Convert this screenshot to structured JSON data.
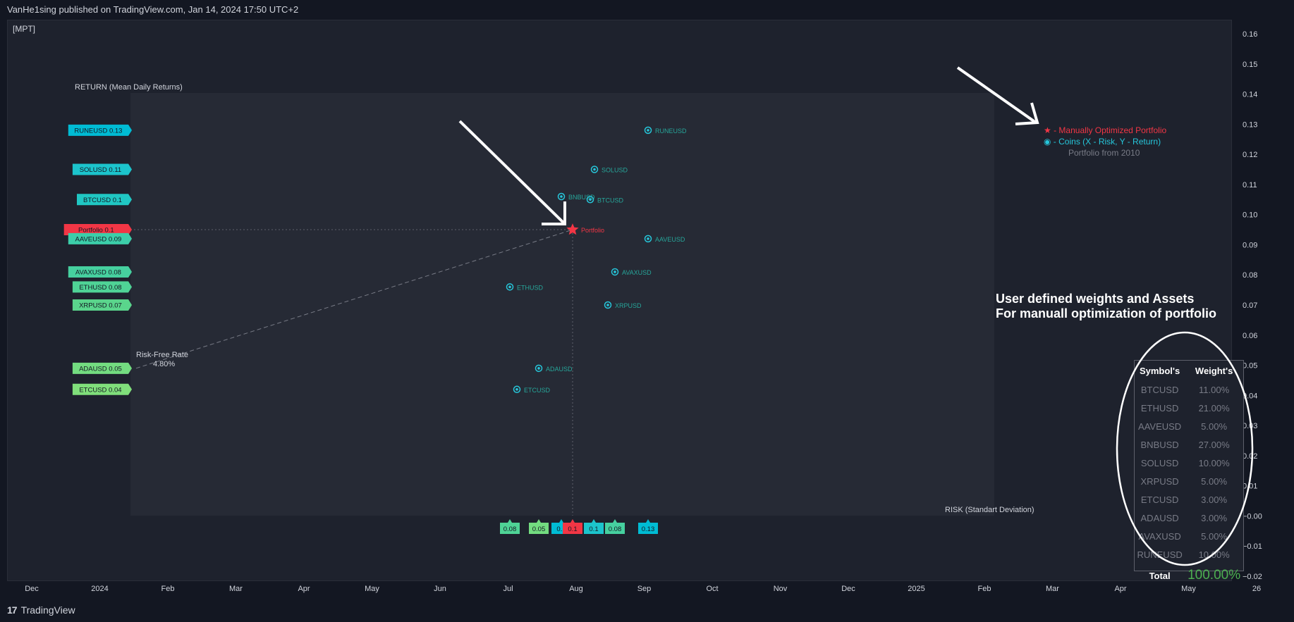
{
  "header": {
    "published": "VanHe1sing published on TradingView.com, Jan 14, 2024 17:50 UTC+2"
  },
  "indicator": {
    "label": "[MPT]"
  },
  "footer": {
    "logo": "17",
    "brand": "TradingView"
  },
  "colors": {
    "portfolio": "#f23645",
    "coin_marker": "#26c6da",
    "note_text": "#ffffff",
    "total_value": "#4caf50"
  },
  "chart_data": {
    "type": "scatter",
    "ylabel": "RETURN (Mean Daily Returns)",
    "xlabel": "RISK (Standart Deviation)",
    "price_axis_ticks": [
      "0.16",
      "0.15",
      "0.14",
      "0.13",
      "0.12",
      "0.11",
      "0.10",
      "0.09",
      "0.08",
      "0.07",
      "0.06",
      "0.05",
      "0.04",
      "0.03",
      "0.02",
      "0.01",
      "−0.00",
      "−0.01",
      "−0.02"
    ],
    "ylim": [
      -0.02,
      0.16
    ],
    "time_axis_ticks": [
      "Dec",
      "2024",
      "Feb",
      "Mar",
      "Apr",
      "May",
      "Jun",
      "Jul",
      "Aug",
      "Sep",
      "Oct",
      "Nov",
      "Dec",
      "2025",
      "Feb",
      "Mar",
      "Apr",
      "May",
      "26"
    ],
    "points": [
      {
        "name": "RUNEUSD",
        "y": 0.128
      },
      {
        "name": "SOLUSD",
        "y": 0.115
      },
      {
        "name": "BNBUSD",
        "y": 0.106
      },
      {
        "name": "BTCUSD",
        "y": 0.105
      },
      {
        "name": "AAVEUSD",
        "y": 0.092
      },
      {
        "name": "AVAXUSD",
        "y": 0.081
      },
      {
        "name": "ETHUSD",
        "y": 0.076
      },
      {
        "name": "XRPUSD",
        "y": 0.07
      },
      {
        "name": "ADAUSD",
        "y": 0.049
      },
      {
        "name": "ETCUSD",
        "y": 0.042
      }
    ],
    "portfolio": {
      "name": "Portfolio",
      "y": 0.095
    },
    "y_labels": [
      {
        "text": "RUNEUSD 0.13",
        "y": 0.128,
        "color": "#00bcd4"
      },
      {
        "text": "SOLUSD 0.11",
        "y": 0.115,
        "color": "#1cc4cc"
      },
      {
        "text": "BTCUSD 0.1",
        "y": 0.105,
        "color": "#20c7c3"
      },
      {
        "text": "Portfolio 0.1",
        "y": 0.095,
        "color": "#f23645"
      },
      {
        "text": "AAVEUSD 0.09",
        "y": 0.092,
        "color": "#3ccea9"
      },
      {
        "text": "AVAXUSD 0.08",
        "y": 0.081,
        "color": "#46d09f"
      },
      {
        "text": "ETHUSD 0.08",
        "y": 0.076,
        "color": "#4fd396"
      },
      {
        "text": "XRPUSD 0.07",
        "y": 0.07,
        "color": "#5ad58c"
      },
      {
        "text": "ADAUSD 0.05",
        "y": 0.049,
        "color": "#73dc80"
      },
      {
        "text": "ETCUSD 0.04",
        "y": 0.042,
        "color": "#80df7b"
      }
    ],
    "x_labels": [
      {
        "text": "0.08",
        "color": "#4fd396"
      },
      {
        "text": "0.05",
        "color": "#73dc80"
      },
      {
        "text": "0.1",
        "color": "#00bcd4"
      },
      {
        "text": "0.1",
        "color": "#f23645"
      },
      {
        "text": "0.1",
        "color": "#1cc4cc"
      },
      {
        "text": "0.08",
        "color": "#46d09f"
      },
      {
        "text": "0.13",
        "color": "#00bcd4"
      }
    ],
    "risk_free": {
      "label": "Risk-Free Rate",
      "value": "4.80%"
    },
    "legend": [
      "★ - Manually Optimized Portfolio",
      "◉ - Coins (X - Risk, Y - Return)",
      "Portfolio from 2010"
    ]
  },
  "note": {
    "line1": "User defined weights and Assets",
    "line2": "For manuall optimization of portfolio"
  },
  "weights_table": {
    "headers": [
      "Symbol's",
      "Weight's"
    ],
    "rows": [
      {
        "symbol": "BTCUSD",
        "weight": "11.00%"
      },
      {
        "symbol": "ETHUSD",
        "weight": "21.00%"
      },
      {
        "symbol": "AAVEUSD",
        "weight": "5.00%"
      },
      {
        "symbol": "BNBUSD",
        "weight": "27.00%"
      },
      {
        "symbol": "SOLUSD",
        "weight": "10.00%"
      },
      {
        "symbol": "XRPUSD",
        "weight": "5.00%"
      },
      {
        "symbol": "ETCUSD",
        "weight": "3.00%"
      },
      {
        "symbol": "ADAUSD",
        "weight": "3.00%"
      },
      {
        "symbol": "AVAXUSD",
        "weight": "5.00%"
      },
      {
        "symbol": "RUNEUSD",
        "weight": "10.00%"
      }
    ],
    "total_label": "Total",
    "total_value": "100.00%"
  }
}
